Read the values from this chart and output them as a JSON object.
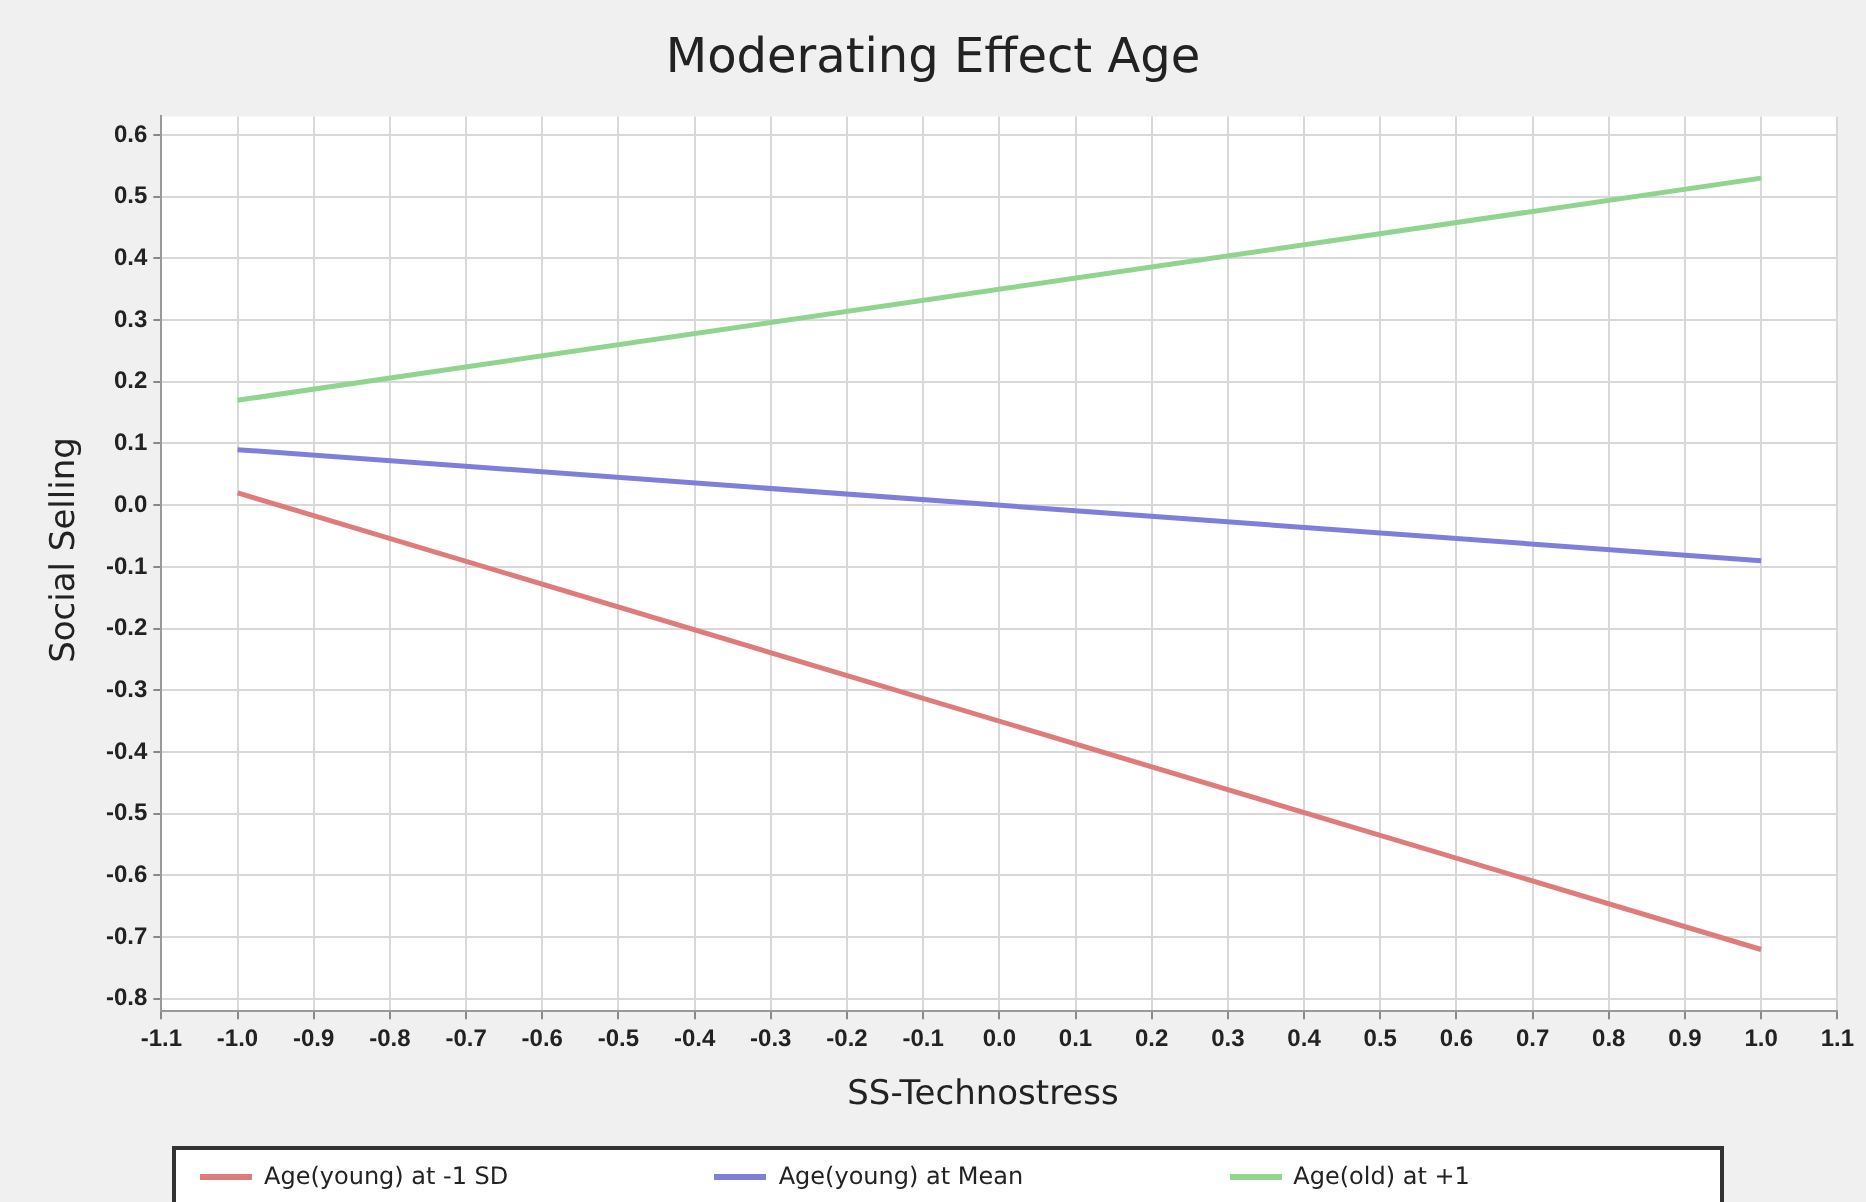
{
  "chart_data": {
    "type": "line",
    "title": "Moderating Effect Age",
    "xlabel": "SS-Technostress",
    "ylabel": "Social Selling",
    "x": [
      -1.0,
      1.0
    ],
    "series": [
      {
        "name": "Age(young) at -1 SD",
        "color": "#e07b7b",
        "values": [
          0.02,
          -0.72
        ]
      },
      {
        "name": "Age(young) at Mean",
        "color": "#7f7fdb",
        "values": [
          0.09,
          -0.09
        ]
      },
      {
        "name": "Age(old) at +1",
        "color": "#8fd48f",
        "values": [
          0.17,
          0.53
        ]
      }
    ],
    "xlim": [
      -1.1,
      1.1
    ],
    "xticks": [
      -1.1,
      {
        "value": -1,
        "label": "-1.0"
      },
      -0.9,
      -0.8,
      -0.7,
      -0.6,
      -0.5,
      -0.4,
      -0.3,
      -0.2,
      -0.1,
      {
        "value": 0,
        "label": "0.0"
      },
      0.1,
      0.2,
      0.3,
      0.4,
      0.5,
      0.6,
      0.7,
      0.8,
      0.9,
      {
        "value": 1,
        "label": "1.0"
      },
      1.1
    ],
    "ylim": [
      -0.82,
      0.63
    ],
    "yticks": [
      -0.8,
      -0.7,
      -0.6,
      -0.5,
      -0.4,
      -0.3,
      -0.2,
      -0.1,
      {
        "value": 0,
        "label": "0.0"
      },
      0.1,
      0.2,
      0.3,
      0.4,
      0.5,
      0.6
    ],
    "grid": true,
    "legend": "bottom",
    "marker": "none",
    "line_style": "solid"
  }
}
